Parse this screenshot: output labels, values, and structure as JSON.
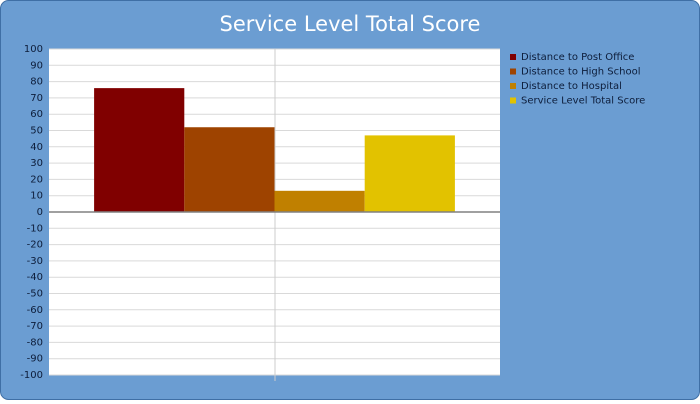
{
  "chart_data": {
    "type": "bar",
    "title": "Service Level Total Score",
    "categories": [
      null
    ],
    "series": [
      {
        "name": "Distance to Post Office",
        "color": "#800000",
        "values": [
          76
        ]
      },
      {
        "name": "Distance to High School",
        "color": "#9e4300",
        "values": [
          52
        ]
      },
      {
        "name": "Distance to Hospital",
        "color": "#c08000",
        "values": [
          13
        ]
      },
      {
        "name": "Service Level Total Score",
        "color": "#e2c200",
        "values": [
          47
        ]
      }
    ],
    "ylim": [
      -100,
      100
    ],
    "yticks": [
      -100,
      -90,
      -80,
      -70,
      -60,
      -50,
      -40,
      -30,
      -20,
      -10,
      0,
      10,
      20,
      30,
      40,
      50,
      60,
      70,
      80,
      90,
      100
    ],
    "grid": true,
    "legend": "right"
  }
}
